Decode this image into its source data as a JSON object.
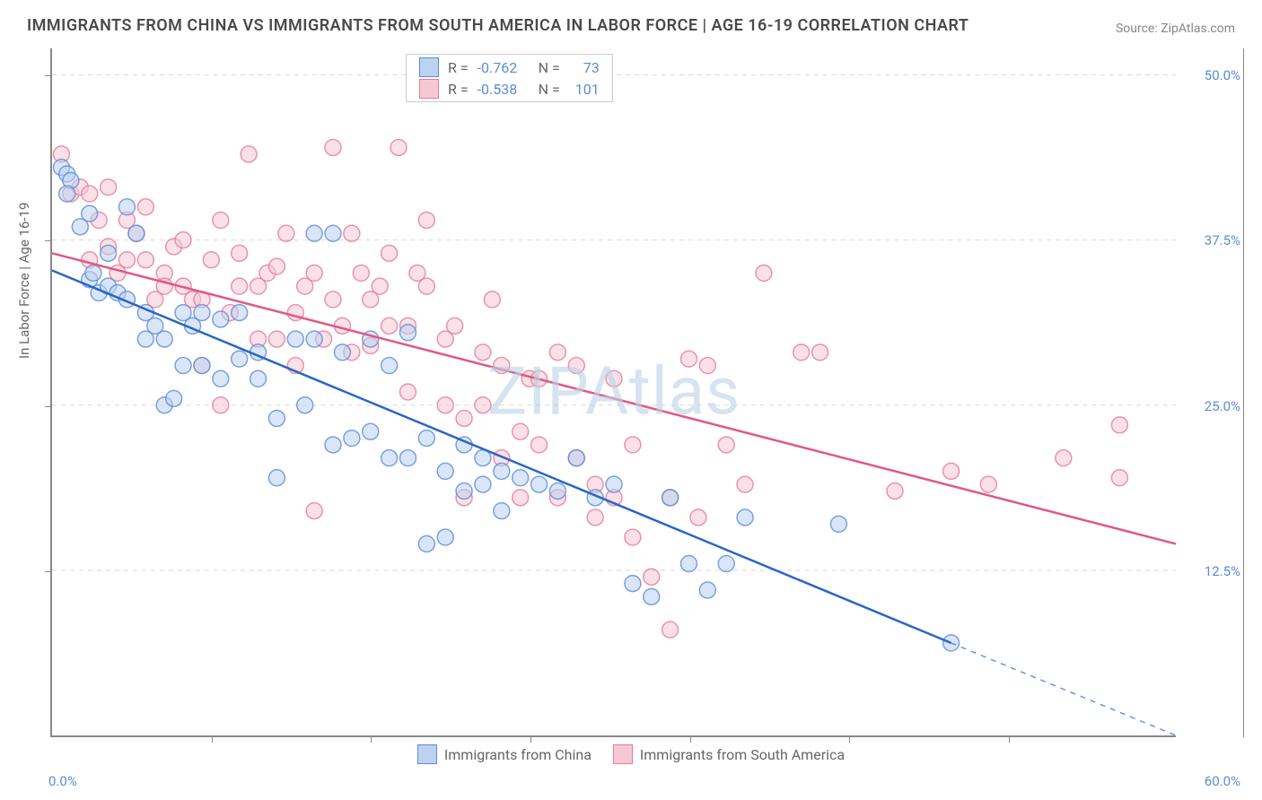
{
  "title": "IMMIGRANTS FROM CHINA VS IMMIGRANTS FROM SOUTH AMERICA IN LABOR FORCE | AGE 16-19 CORRELATION CHART",
  "source": "Source: ZipAtlas.com",
  "watermark": "ZIPAtlas",
  "ylabel": "In Labor Force | Age 16-19",
  "chart": {
    "type": "scatter",
    "xlim": [
      0,
      60
    ],
    "ylim": [
      0,
      52
    ],
    "y_ticks": [
      12.5,
      25.0,
      37.5,
      50.0
    ],
    "y_tick_step": 12.5,
    "x_ticks_minor": [
      8.5,
      17,
      25.5,
      34,
      42.5,
      51
    ],
    "x_label_min": "0.0%",
    "x_label_max": "60.0%",
    "background_color": "#ffffff",
    "grid_color": "#d8d8d8",
    "marker_radius": 9,
    "marker_opacity": 0.55,
    "marker_stroke_width": 1.5,
    "line_width": 2.5,
    "legend_top": [
      {
        "swatch_fill": "#bcd2f0",
        "swatch_stroke": "#5b8cd9",
        "r_label": "R =",
        "r_value": "-0.762",
        "n_label": "N =",
        "n_value": "73"
      },
      {
        "swatch_fill": "#f6c8d4",
        "swatch_stroke": "#e77a9a",
        "r_label": "R =",
        "r_value": "-0.538",
        "n_label": "N =",
        "n_value": "101"
      }
    ],
    "legend_bottom": [
      {
        "swatch_fill": "#bcd2f0",
        "swatch_stroke": "#5b8cd9",
        "label": "Immigrants from China"
      },
      {
        "swatch_fill": "#f6c8d4",
        "swatch_stroke": "#e77a9a",
        "label": "Immigrants from South America"
      }
    ],
    "series": [
      {
        "name": "china",
        "color_fill": "#bcd2f0",
        "color_stroke": "#5b8cd9",
        "trend_color": "#2b66c4",
        "trend": {
          "x1": 0,
          "y1": 35.2,
          "x2": 48,
          "y2": 7.0,
          "x_dashed_from": 48,
          "x2_dashed": 60,
          "y2_dashed": 0
        },
        "points": [
          [
            0.5,
            43
          ],
          [
            0.8,
            42.5
          ],
          [
            1,
            42
          ],
          [
            0.8,
            41
          ],
          [
            1.5,
            38.5
          ],
          [
            2,
            34.5
          ],
          [
            2.2,
            35
          ],
          [
            2.5,
            33.5
          ],
          [
            2,
            39.5
          ],
          [
            3,
            36.5
          ],
          [
            3,
            34
          ],
          [
            3.5,
            33.5
          ],
          [
            4,
            33
          ],
          [
            4,
            40
          ],
          [
            4.5,
            38
          ],
          [
            5,
            32
          ],
          [
            5,
            30
          ],
          [
            5.5,
            31
          ],
          [
            6,
            30
          ],
          [
            6,
            25
          ],
          [
            6.5,
            25.5
          ],
          [
            7,
            32
          ],
          [
            7,
            28
          ],
          [
            7.5,
            31
          ],
          [
            8,
            32
          ],
          [
            8,
            28
          ],
          [
            9,
            31.5
          ],
          [
            9,
            27
          ],
          [
            10,
            28.5
          ],
          [
            10,
            32
          ],
          [
            11,
            29
          ],
          [
            11,
            27
          ],
          [
            12,
            24
          ],
          [
            12,
            19.5
          ],
          [
            13,
            30
          ],
          [
            13.5,
            25
          ],
          [
            14,
            38
          ],
          [
            14,
            30
          ],
          [
            15,
            38
          ],
          [
            15,
            22
          ],
          [
            15.5,
            29
          ],
          [
            16,
            22.5
          ],
          [
            17,
            23
          ],
          [
            17,
            30
          ],
          [
            18,
            21
          ],
          [
            18,
            28
          ],
          [
            19,
            21
          ],
          [
            19,
            30.5
          ],
          [
            20,
            22.5
          ],
          [
            20,
            14.5
          ],
          [
            21,
            15
          ],
          [
            21,
            20
          ],
          [
            22,
            18.5
          ],
          [
            22,
            22
          ],
          [
            23,
            21
          ],
          [
            23,
            19
          ],
          [
            24,
            20
          ],
          [
            24,
            17
          ],
          [
            25,
            19.5
          ],
          [
            26,
            19
          ],
          [
            27,
            18.5
          ],
          [
            28,
            21
          ],
          [
            29,
            18
          ],
          [
            30,
            19
          ],
          [
            31,
            11.5
          ],
          [
            32,
            10.5
          ],
          [
            33,
            18
          ],
          [
            34,
            13
          ],
          [
            35,
            11
          ],
          [
            36,
            13
          ],
          [
            37,
            16.5
          ],
          [
            42,
            16
          ],
          [
            48,
            7
          ]
        ]
      },
      {
        "name": "south_america",
        "color_fill": "#f6c8d4",
        "color_stroke": "#e77a9a",
        "trend_color": "#e05a84",
        "trend": {
          "x1": 0,
          "y1": 36.5,
          "x2": 60,
          "y2": 14.5
        },
        "points": [
          [
            0.5,
            44
          ],
          [
            1,
            41
          ],
          [
            1.5,
            41.5
          ],
          [
            2,
            41
          ],
          [
            2,
            36
          ],
          [
            2.5,
            39
          ],
          [
            3,
            37
          ],
          [
            3,
            41.5
          ],
          [
            3.5,
            35
          ],
          [
            4,
            39
          ],
          [
            4,
            36
          ],
          [
            4.5,
            38
          ],
          [
            5,
            36
          ],
          [
            5,
            40
          ],
          [
            5.5,
            33
          ],
          [
            6,
            35
          ],
          [
            6,
            34
          ],
          [
            6.5,
            37
          ],
          [
            7,
            34
          ],
          [
            7,
            37.5
          ],
          [
            7.5,
            33
          ],
          [
            8,
            33
          ],
          [
            8,
            28
          ],
          [
            8.5,
            36
          ],
          [
            9,
            39
          ],
          [
            9,
            25
          ],
          [
            9.5,
            32
          ],
          [
            10,
            36.5
          ],
          [
            10,
            34
          ],
          [
            10.5,
            44
          ],
          [
            11,
            34
          ],
          [
            11,
            30
          ],
          [
            11.5,
            35
          ],
          [
            12,
            30
          ],
          [
            12,
            35.5
          ],
          [
            12.5,
            38
          ],
          [
            13,
            32
          ],
          [
            13,
            28
          ],
          [
            13.5,
            34
          ],
          [
            14,
            35
          ],
          [
            14,
            17
          ],
          [
            14.5,
            30
          ],
          [
            15,
            33
          ],
          [
            15,
            44.5
          ],
          [
            15.5,
            31
          ],
          [
            16,
            38
          ],
          [
            16,
            29
          ],
          [
            16.5,
            35
          ],
          [
            17,
            33
          ],
          [
            17,
            29.5
          ],
          [
            17.5,
            34
          ],
          [
            18,
            36.5
          ],
          [
            18,
            31
          ],
          [
            18.5,
            44.5
          ],
          [
            19,
            31
          ],
          [
            19,
            26
          ],
          [
            19.5,
            35
          ],
          [
            20,
            34
          ],
          [
            20,
            39
          ],
          [
            21,
            30
          ],
          [
            21,
            25
          ],
          [
            21.5,
            31
          ],
          [
            22,
            24
          ],
          [
            22,
            18
          ],
          [
            23,
            29
          ],
          [
            23,
            25
          ],
          [
            23.5,
            33
          ],
          [
            24,
            28
          ],
          [
            24,
            21
          ],
          [
            25,
            23
          ],
          [
            25,
            18
          ],
          [
            25.5,
            27
          ],
          [
            26,
            27
          ],
          [
            26,
            22
          ],
          [
            27,
            29
          ],
          [
            27,
            18
          ],
          [
            28,
            21
          ],
          [
            28,
            28
          ],
          [
            29,
            19
          ],
          [
            29,
            16.5
          ],
          [
            30,
            27
          ],
          [
            30,
            18
          ],
          [
            31,
            22
          ],
          [
            31,
            15
          ],
          [
            32,
            12
          ],
          [
            33,
            18
          ],
          [
            33,
            8
          ],
          [
            34,
            28.5
          ],
          [
            35,
            28
          ],
          [
            36,
            22
          ],
          [
            37,
            19
          ],
          [
            38,
            35
          ],
          [
            40,
            29
          ],
          [
            41,
            29
          ],
          [
            45,
            18.5
          ],
          [
            48,
            20
          ],
          [
            50,
            19
          ],
          [
            54,
            21
          ],
          [
            57,
            23.5
          ],
          [
            57,
            19.5
          ],
          [
            34.5,
            16.5
          ]
        ]
      }
    ]
  }
}
